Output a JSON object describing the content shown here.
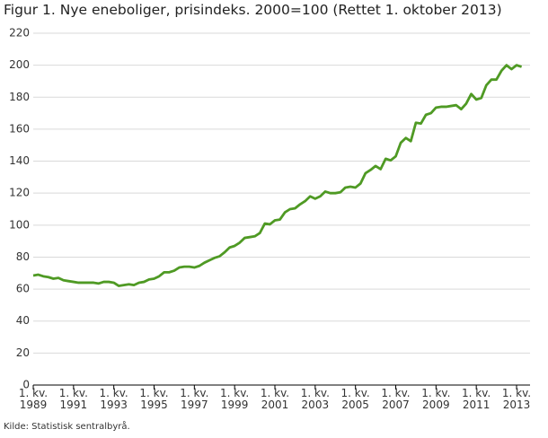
{
  "chart_data": {
    "type": "line",
    "title": "Figur 1. Nye eneboliger, prisindeks. 2000=100 (Rettet 1. oktober 2013)",
    "source": "Kilde: Statistisk sentralbyrå.",
    "categories": [
      "1. kv. 1989",
      null,
      null,
      null,
      null,
      null,
      null,
      null,
      "1. kv. 1991",
      null,
      null,
      null,
      null,
      null,
      null,
      null,
      "1. kv. 1993",
      null,
      null,
      null,
      null,
      null,
      null,
      null,
      "1. kv. 1995",
      null,
      null,
      null,
      null,
      null,
      null,
      null,
      "1. kv. 1997",
      null,
      null,
      null,
      null,
      null,
      null,
      null,
      "1. kv. 1999",
      null,
      null,
      null,
      null,
      null,
      null,
      null,
      "1. kv. 2001",
      null,
      null,
      null,
      null,
      null,
      null,
      null,
      "1. kv. 2003",
      null,
      null,
      null,
      null,
      null,
      null,
      null,
      "1. kv. 2005",
      null,
      null,
      null,
      null,
      null,
      null,
      null,
      "1. kv. 2007",
      null,
      null,
      null,
      null,
      null,
      null,
      null,
      "1. kv. 2009",
      null,
      null,
      null,
      null,
      null,
      null,
      null,
      "1. kv. 2011",
      null,
      null,
      null,
      null,
      null,
      null,
      null,
      "1. kv. 2013",
      null
    ],
    "values": [
      68.5,
      69,
      68,
      67.5,
      66.5,
      67,
      65.5,
      65,
      64.5,
      64,
      64,
      64,
      64,
      63.5,
      64.5,
      64.5,
      64,
      62,
      62.5,
      63,
      62.5,
      64,
      64.5,
      66,
      66.5,
      68,
      70.5,
      70.5,
      71.5,
      73.5,
      74,
      74,
      73.5,
      74.5,
      76.5,
      78,
      79.5,
      80.5,
      83,
      86,
      87,
      89,
      92,
      92.5,
      93,
      95,
      101,
      100.5,
      103,
      103.5,
      108,
      110,
      110.5,
      113,
      115,
      118,
      116.5,
      118,
      121,
      120,
      120,
      120.5,
      123.5,
      124,
      123.5,
      126,
      132.5,
      134.5,
      137,
      135,
      141.5,
      140.5,
      143,
      151.5,
      154.5,
      152.5,
      164,
      163.5,
      169,
      170,
      173.5,
      174,
      174,
      174.5,
      175,
      172.5,
      176,
      182,
      178.5,
      179.5,
      187.5,
      191,
      191,
      196.5,
      200,
      197.5,
      200,
      199
    ],
    "color": "#4f9a24",
    "ylim": [
      0,
      220
    ],
    "yticks": [
      0,
      20,
      40,
      60,
      80,
      100,
      120,
      140,
      160,
      180,
      200,
      220
    ],
    "grid": true
  }
}
